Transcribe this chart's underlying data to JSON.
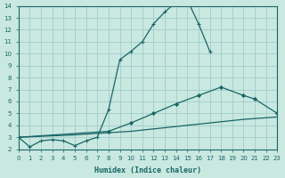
{
  "xlabel": "Humidex (Indice chaleur)",
  "bg_color": "#c8e8e0",
  "grid_color": "#a0cccc",
  "line_color": "#1a6666",
  "xlim": [
    0,
    23
  ],
  "ylim": [
    2,
    14
  ],
  "xticks": [
    0,
    1,
    2,
    3,
    4,
    5,
    6,
    7,
    8,
    9,
    10,
    11,
    12,
    13,
    14,
    15,
    16,
    17,
    18,
    19,
    20,
    21,
    22,
    23
  ],
  "yticks": [
    2,
    3,
    4,
    5,
    6,
    7,
    8,
    9,
    10,
    11,
    12,
    13,
    14
  ],
  "curve1_x": [
    0,
    1,
    2,
    3,
    4,
    5,
    6,
    7,
    8,
    9,
    10,
    11,
    12,
    13,
    14,
    15,
    16,
    17
  ],
  "curve1_y": [
    3.0,
    2.2,
    2.7,
    2.8,
    2.7,
    2.3,
    2.7,
    3.0,
    5.3,
    9.5,
    10.2,
    11.0,
    12.5,
    13.5,
    14.3,
    14.5,
    12.5,
    10.2
  ],
  "curve2_x": [
    0,
    8,
    10,
    12,
    14,
    16,
    18,
    20,
    21,
    23
  ],
  "curve2_y": [
    3.0,
    3.5,
    4.2,
    5.0,
    5.8,
    6.5,
    7.2,
    6.5,
    6.2,
    5.0
  ],
  "curve3_x": [
    0,
    5,
    10,
    15,
    20,
    23
  ],
  "curve3_y": [
    3.0,
    3.2,
    3.5,
    4.0,
    4.5,
    4.7
  ]
}
